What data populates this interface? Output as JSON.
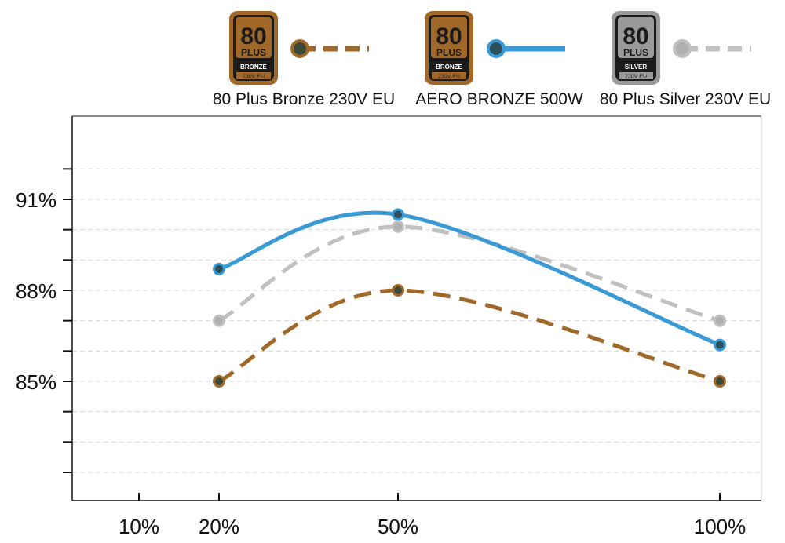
{
  "chart_data": {
    "type": "line",
    "x_ticks": [
      {
        "value": 10,
        "label": "10%"
      },
      {
        "value": 20,
        "label": "20%"
      },
      {
        "value": 50,
        "label": "50%"
      },
      {
        "value": 100,
        "label": "100%"
      }
    ],
    "y_ticks": [
      {
        "value": 85,
        "label": "85%"
      },
      {
        "value": 88,
        "label": "88%"
      },
      {
        "value": 91,
        "label": "91%"
      }
    ],
    "ylim": [
      81,
      93
    ],
    "grid": true,
    "legend_position": "top",
    "series": [
      {
        "name": "80 Plus Bronze 230V EU",
        "style": "dashed",
        "color": "#a0692a",
        "marker_fill": "#3e4a38",
        "badge": {
          "top": "80",
          "mid": "PLUS",
          "tier": "BRONZE",
          "volt": "230V EU",
          "color": "#a0692a"
        },
        "x": [
          20,
          50,
          100
        ],
        "values": [
          85.0,
          88.0,
          85.0
        ]
      },
      {
        "name": "AERO BRONZE 500W",
        "style": "solid",
        "color": "#3a9ad5",
        "marker_fill": "#2c4f5a",
        "badge": {
          "top": "80",
          "mid": "PLUS",
          "tier": "BRONZE",
          "volt": "230V EU",
          "color": "#a0692a"
        },
        "x": [
          20,
          50,
          100
        ],
        "values": [
          88.7,
          90.5,
          86.2
        ]
      },
      {
        "name": "80 Plus Silver 230V EU",
        "style": "dashed",
        "color": "#c0c0c0",
        "marker_fill": "#b0b0b0",
        "badge": {
          "top": "80",
          "mid": "PLUS",
          "tier": "SILVER",
          "volt": "230V EU",
          "color": "#9a9a9a"
        },
        "x": [
          20,
          50,
          100
        ],
        "values": [
          87.0,
          90.1,
          87.0
        ]
      }
    ]
  }
}
